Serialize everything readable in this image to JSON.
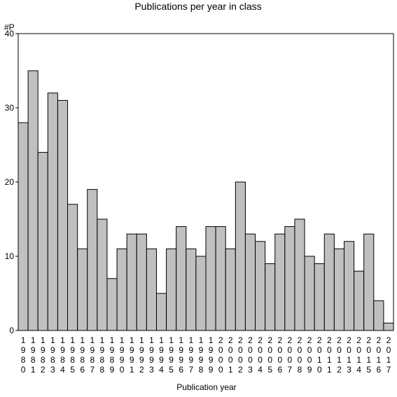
{
  "chart_data": {
    "type": "bar",
    "title": "Publications per year in class",
    "xlabel": "Publication year",
    "ylabel": "#P",
    "ylim": [
      0,
      40
    ],
    "yticks": [
      0,
      10,
      20,
      30,
      40
    ],
    "grid": false,
    "bar_color": "#c0c0c0",
    "categories": [
      "1980",
      "1981",
      "1982",
      "1983",
      "1984",
      "1985",
      "1986",
      "1987",
      "1988",
      "1989",
      "1990",
      "1991",
      "1992",
      "1993",
      "1994",
      "1995",
      "1996",
      "1997",
      "1998",
      "1999",
      "2000",
      "2001",
      "2002",
      "2003",
      "2004",
      "2005",
      "2006",
      "2007",
      "2008",
      "2009",
      "2010",
      "2011",
      "2012",
      "2013",
      "2014",
      "2015",
      "2016",
      "2017"
    ],
    "values": [
      28,
      35,
      24,
      32,
      31,
      17,
      11,
      19,
      15,
      7,
      11,
      13,
      13,
      11,
      5,
      11,
      14,
      11,
      10,
      14,
      14,
      11,
      20,
      13,
      12,
      9,
      13,
      14,
      15,
      10,
      9,
      13,
      11,
      12,
      8,
      13,
      4,
      1
    ]
  }
}
